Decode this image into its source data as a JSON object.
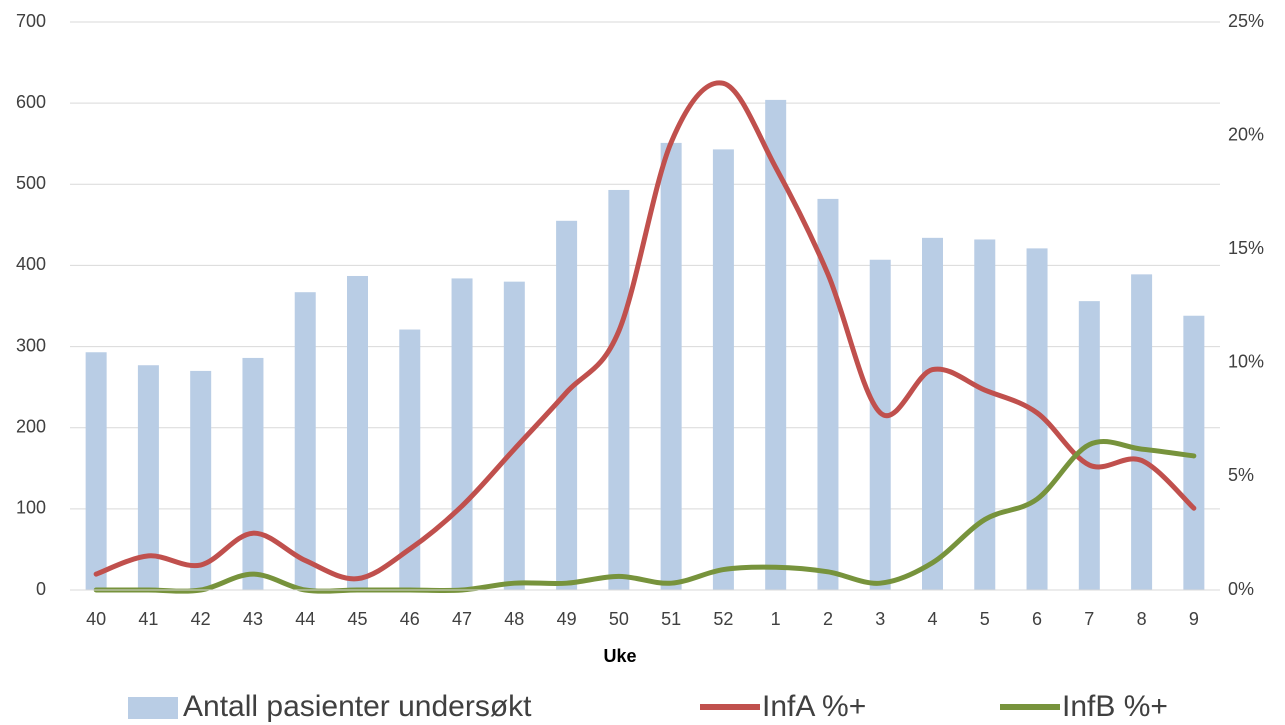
{
  "chart_data": {
    "type": "bar-line",
    "x_label": "Uke",
    "categories": [
      "40",
      "41",
      "42",
      "43",
      "44",
      "45",
      "46",
      "47",
      "48",
      "49",
      "50",
      "51",
      "52",
      "1",
      "2",
      "3",
      "4",
      "5",
      "6",
      "7",
      "8",
      "9"
    ],
    "series": [
      {
        "name": "Antall pasienter undersøkt",
        "type": "bar",
        "color": "#b9cde5",
        "values": [
          293,
          277,
          270,
          286,
          367,
          387,
          321,
          384,
          380,
          455,
          493,
          551,
          543,
          604,
          482,
          407,
          434,
          432,
          421,
          356,
          389,
          338
        ]
      },
      {
        "name": "InfA %+",
        "type": "line",
        "axis": "y2",
        "color": "#c0504d",
        "values": [
          0.7,
          1.5,
          1.1,
          2.5,
          1.3,
          0.5,
          1.8,
          3.7,
          6.2,
          8.7,
          11.4,
          19.7,
          22.3,
          18.6,
          13.9,
          7.8,
          9.7,
          8.8,
          7.8,
          5.5,
          5.7,
          3.6
        ]
      },
      {
        "name": "InfB %+",
        "type": "line",
        "axis": "y2",
        "color": "#77933c",
        "values": [
          0,
          0,
          0,
          0.7,
          0,
          0,
          0,
          0,
          0.3,
          0.3,
          0.6,
          0.3,
          0.9,
          1.0,
          0.8,
          0.3,
          1.2,
          3.1,
          4.0,
          6.4,
          6.2,
          5.9
        ]
      }
    ],
    "ylim": [
      0,
      700
    ],
    "yticks": [
      0,
      100,
      200,
      300,
      400,
      500,
      600,
      700
    ],
    "y2lim": [
      0,
      25
    ],
    "y2ticks": [
      {
        "value": 0,
        "label": "0%"
      },
      {
        "value": 5,
        "label": "5%"
      },
      {
        "value": 10,
        "label": "10%"
      },
      {
        "value": 15,
        "label": "15%"
      },
      {
        "value": 20,
        "label": "20%"
      },
      {
        "value": 25,
        "label": "25%"
      }
    ],
    "grid": true,
    "smooth": true,
    "legend": "bottom"
  }
}
